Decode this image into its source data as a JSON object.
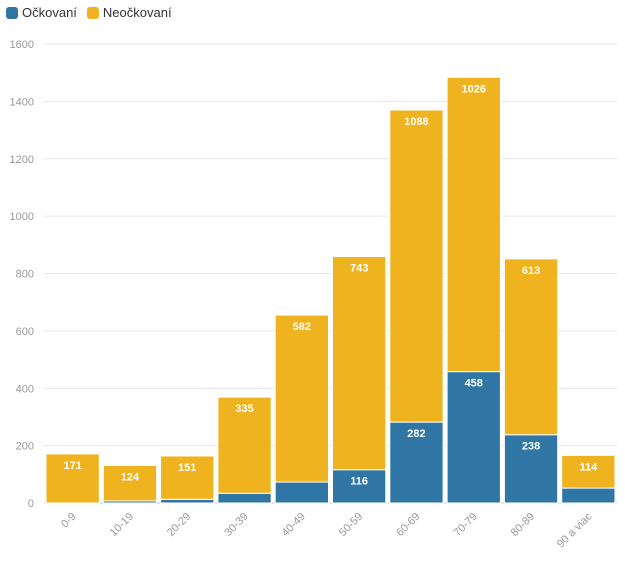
{
  "chart_data": {
    "type": "bar",
    "stacked": true,
    "categories": [
      "0-9",
      "10-19",
      "20-29",
      "30-39",
      "40-49",
      "50-59",
      "60-69",
      "70-79",
      "80-89",
      "90 a viac"
    ],
    "series": [
      {
        "name": "Očkovaní",
        "color": "#2f76a5",
        "values": [
          0,
          7,
          13,
          34,
          73,
          116,
          282,
          458,
          238,
          52
        ],
        "labels": [
          "",
          "",
          "",
          "",
          "",
          "116",
          "282",
          "458",
          "238",
          ""
        ]
      },
      {
        "name": "Neočkovaní",
        "color": "#eeb31e",
        "values": [
          171,
          124,
          151,
          335,
          582,
          743,
          1088,
          1026,
          613,
          114
        ],
        "labels": [
          "171",
          "124",
          "151",
          "335",
          "582",
          "743",
          "1088",
          "1026",
          "613",
          "114"
        ]
      }
    ],
    "ylim": [
      0,
      1600
    ],
    "yticks": [
      0,
      200,
      400,
      600,
      800,
      1000,
      1200,
      1400,
      1600
    ],
    "title": "",
    "xlabel": "",
    "ylabel": ""
  }
}
